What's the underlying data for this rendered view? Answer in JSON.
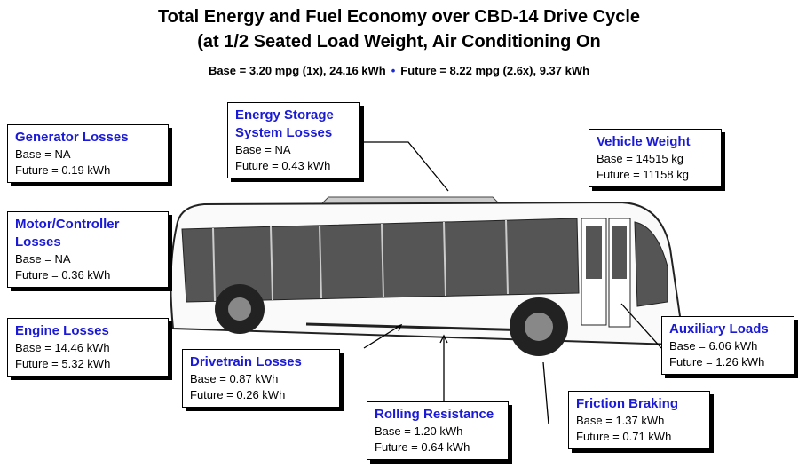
{
  "header": {
    "title": [
      "Total Energy and Fuel Economy over CBD-14 Drive Cycle",
      "(at 1/2 Seated Load Weight, Air Conditioning On"
    ],
    "subtitle": {
      "base": "Base = 3.20 mpg (1x), 24.16 kWh",
      "separator": "•",
      "future": "Future = 8.22 mpg (2.6x), 9.37 kWh"
    }
  },
  "boxes": [
    {
      "heading": [
        "Generator Losses"
      ],
      "lines": [
        "Base = NA",
        "Future = 0.19 kWh"
      ]
    },
    {
      "heading": [
        "Energy Storage",
        "System Losses"
      ],
      "lines": [
        "Base = NA",
        "Future = 0.43 kWh"
      ]
    },
    {
      "heading": [
        "Vehicle Weight"
      ],
      "lines": [
        "Base = 14515 kg",
        "Future = 11158 kg"
      ]
    },
    {
      "heading": [
        "Motor/Controller",
        "Losses"
      ],
      "lines": [
        "Base = NA",
        "Future = 0.36 kWh"
      ]
    },
    {
      "heading": [
        "Engine Losses"
      ],
      "lines": [
        "Base = 14.46 kWh",
        "Future = 5.32 kWh"
      ]
    },
    {
      "heading": [
        "Drivetrain Losses"
      ],
      "lines": [
        "Base = 0.87 kWh",
        "Future = 0.26 kWh"
      ]
    },
    {
      "heading": [
        "Rolling Resistance"
      ],
      "lines": [
        "Base = 1.20 kWh",
        "Future = 0.64 kWh"
      ]
    },
    {
      "heading": [
        "Friction Braking"
      ],
      "lines": [
        "Base = 1.37 kWh",
        "Future = 0.71 kWh"
      ]
    },
    {
      "heading": [
        "Auxiliary Loads"
      ],
      "lines": [
        "Base = 6.06 kWh",
        "Future = 1.26 kWh"
      ]
    }
  ]
}
